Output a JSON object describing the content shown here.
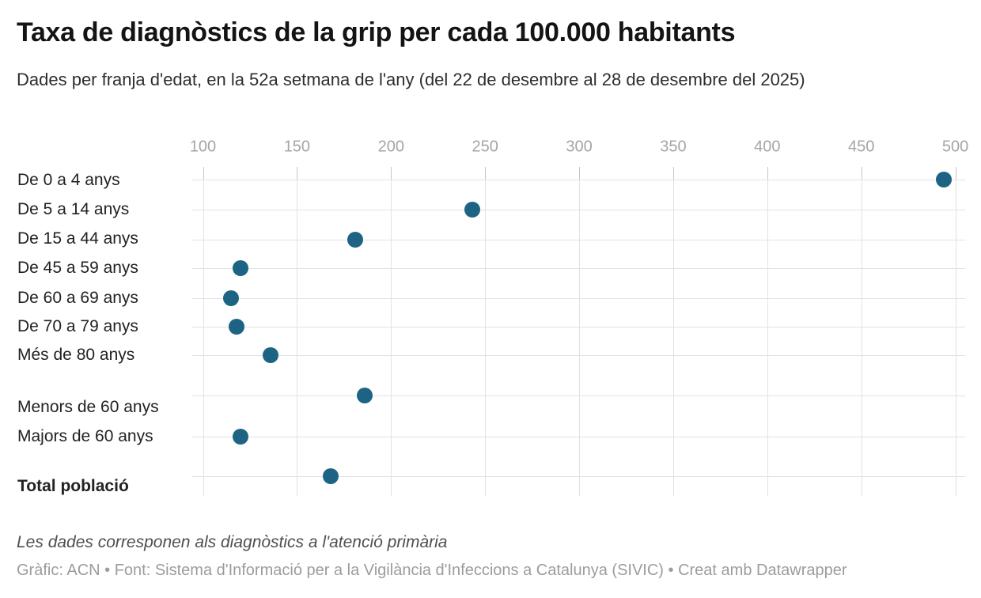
{
  "chart_data": {
    "type": "scatter",
    "variant": "horizontal-dot-plot",
    "title": "Taxa de diagnòstics de la grip per cada 100.000 habitants",
    "subtitle": "Dades per franja d'edat, en la 52a setmana de l'any (del 22 de desembre al 28 de desembre del 2025)",
    "xlabel": "",
    "ylabel": "",
    "xlim": [
      94,
      512
    ],
    "x_ticks": [
      100,
      150,
      200,
      250,
      300,
      350,
      400,
      450,
      500
    ],
    "grid": true,
    "legend": "none",
    "categories": [
      "De 0 a 4 anys",
      "De 5 a 14 anys",
      "De 15 a 44 anys",
      "De 45 a 59 anys",
      "De 60 a 69 anys",
      "De 70 a 79 anys",
      "Més de 80 anys",
      "Menors de 60 anys",
      "Majors de 60 anys",
      "Total població"
    ],
    "values": [
      494,
      243,
      181,
      120,
      115,
      118,
      136,
      186,
      120,
      168
    ],
    "bold_categories": [
      "Total població"
    ],
    "group_gap_before": [
      "Menors de 60 anys",
      "Total població"
    ]
  },
  "footer": {
    "note": "Les dades corresponen als diagnòstics a l'atenció primària",
    "byline": "Gràfic: ACN • Font: Sistema d'Informació per a la Vigilància d'Infeccions a Catalunya (SIVIC) • Creat amb Datawrapper"
  },
  "colors": {
    "dot": "#1d6484",
    "grid_line": "#e2e2e2",
    "tick_mark": "#c6c6c6",
    "tick_label_text": "#a5a5a5",
    "title_text": "#141414",
    "label_text": "#222222",
    "note_text": "#4f4f4f",
    "byline_text": "#9c9c9c"
  }
}
